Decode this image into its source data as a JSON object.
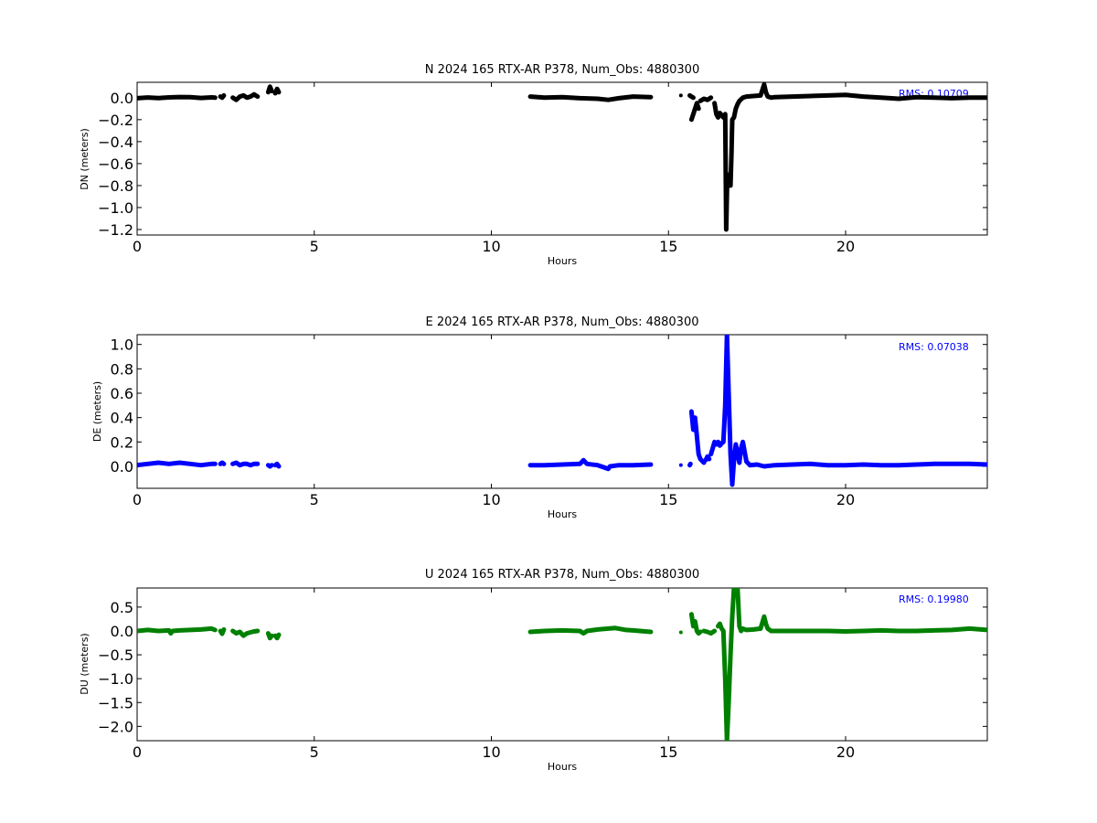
{
  "chart_data": [
    {
      "type": "scatter",
      "title": "N 2024 165 RTX-AR  P378, Num_Obs: 4880300",
      "xlabel": "Hours",
      "ylabel": "DN (meters)",
      "xlim": [
        0,
        24
      ],
      "ylim": [
        -1.25,
        0.14
      ],
      "xticks": [
        0,
        5,
        10,
        15,
        20
      ],
      "xtick_labels": [
        "0",
        "5",
        "10",
        "15",
        "20"
      ],
      "yticks": [
        0.0,
        -0.2,
        -0.4,
        -0.6,
        -0.8,
        -1.0,
        -1.2
      ],
      "ytick_labels": [
        "0.0",
        "−0.2",
        "−0.4",
        "−0.6",
        "−0.8",
        "−1.0",
        "−1.2"
      ],
      "annotation": "RMS:  0.10709",
      "color": "#000000",
      "series": [
        {
          "x": [
            0.0,
            0.3,
            0.6,
            0.9,
            1.2,
            1.5,
            1.8,
            2.1,
            2.2
          ],
          "y": [
            -0.005,
            0.002,
            -0.004,
            0.003,
            0.006,
            0.004,
            -0.002,
            0.003,
            0.0
          ]
        },
        {
          "x": [
            2.35,
            2.4,
            2.45
          ],
          "y": [
            0.01,
            0.0,
            0.02
          ]
        },
        {
          "x": [
            2.7,
            2.8,
            2.9,
            3.0,
            3.1,
            3.2,
            3.3,
            3.4
          ],
          "y": [
            0.0,
            -0.02,
            0.01,
            0.02,
            0.0,
            0.01,
            0.03,
            0.01
          ]
        },
        {
          "x": [
            3.7,
            3.75,
            3.8
          ],
          "y": [
            0.05,
            0.1,
            0.06
          ]
        },
        {
          "x": [
            3.9,
            3.95,
            4.0
          ],
          "y": [
            0.04,
            0.08,
            0.05
          ]
        },
        {
          "x": [
            11.1,
            11.5,
            12.0,
            12.5,
            13.0,
            13.3,
            13.6,
            14.0,
            14.5
          ],
          "y": [
            0.01,
            0.0,
            0.005,
            -0.005,
            -0.01,
            -0.02,
            -0.005,
            0.01,
            0.005
          ]
        },
        {
          "x": [
            15.35
          ],
          "y": [
            0.02
          ]
        },
        {
          "x": [
            15.65,
            15.7,
            15.8,
            15.85
          ],
          "y": [
            -0.2,
            -0.15,
            -0.05,
            -0.1
          ]
        },
        {
          "x": [
            15.6,
            15.65,
            15.7
          ],
          "y": [
            0.02,
            0.01,
            0.0
          ]
        },
        {
          "x": [
            15.9,
            16.0,
            16.1,
            16.2
          ],
          "y": [
            -0.03,
            -0.01,
            -0.02,
            0.0
          ]
        },
        {
          "x": [
            16.3,
            16.35,
            16.4,
            16.45,
            16.5,
            16.55,
            16.6,
            16.63,
            16.66,
            16.7,
            16.72,
            16.75,
            16.78,
            16.8,
            16.85,
            16.9,
            16.95,
            17.0,
            17.1,
            17.2,
            17.4,
            17.6,
            17.7,
            17.75,
            17.8,
            17.9,
            18.0,
            18.5,
            19.0,
            19.5,
            20.0,
            20.5,
            21.0,
            21.5,
            22.0,
            22.5,
            23.0,
            23.5,
            24.0
          ],
          "y": [
            -0.05,
            -0.15,
            -0.18,
            -0.14,
            -0.16,
            -0.18,
            -0.15,
            -1.2,
            -0.7,
            -0.8,
            -0.7,
            -0.8,
            -0.5,
            -0.2,
            -0.18,
            -0.1,
            -0.06,
            -0.03,
            0.0,
            0.01,
            0.015,
            0.02,
            0.12,
            0.05,
            0.01,
            0.0,
            0.005,
            0.01,
            0.015,
            0.02,
            0.025,
            0.01,
            0.0,
            -0.01,
            0.005,
            0.0,
            -0.005,
            0.0,
            0.0
          ]
        }
      ]
    },
    {
      "type": "scatter",
      "title": "E 2024 165 RTX-AR  P378, Num_Obs: 4880300",
      "xlabel": "Hours",
      "ylabel": "DE (meters)",
      "xlim": [
        0,
        24
      ],
      "ylim": [
        -0.18,
        1.08
      ],
      "xticks": [
        0,
        5,
        10,
        15,
        20
      ],
      "xtick_labels": [
        "0",
        "5",
        "10",
        "15",
        "20"
      ],
      "yticks": [
        0.0,
        0.2,
        0.4,
        0.6,
        0.8,
        1.0
      ],
      "ytick_labels": [
        "0.0",
        "0.2",
        "0.4",
        "0.6",
        "0.8",
        "1.0"
      ],
      "annotation": "RMS:  0.07038",
      "color": "#0000ff",
      "series": [
        {
          "x": [
            0.0,
            0.3,
            0.6,
            0.9,
            1.2,
            1.5,
            1.8,
            2.1,
            2.2
          ],
          "y": [
            0.01,
            0.02,
            0.03,
            0.02,
            0.03,
            0.02,
            0.01,
            0.02,
            0.02
          ]
        },
        {
          "x": [
            2.35,
            2.4,
            2.45
          ],
          "y": [
            0.02,
            0.03,
            0.02
          ]
        },
        {
          "x": [
            2.7,
            2.8,
            2.9,
            3.0,
            3.1,
            3.2,
            3.3,
            3.4
          ],
          "y": [
            0.02,
            0.03,
            0.01,
            0.02,
            0.02,
            0.01,
            0.02,
            0.02
          ]
        },
        {
          "x": [
            3.7,
            3.75,
            3.8
          ],
          "y": [
            0.01,
            0.0,
            0.01
          ]
        },
        {
          "x": [
            3.9,
            3.95,
            4.0
          ],
          "y": [
            0.01,
            0.02,
            0.0
          ]
        },
        {
          "x": [
            11.1,
            11.5,
            12.0,
            12.5,
            12.6,
            12.7,
            13.0,
            13.3,
            13.35,
            13.6,
            14.0,
            14.5
          ],
          "y": [
            0.01,
            0.01,
            0.015,
            0.02,
            0.05,
            0.02,
            0.01,
            -0.02,
            0.0,
            0.01,
            0.01,
            0.015
          ]
        },
        {
          "x": [
            15.35
          ],
          "y": [
            0.01
          ]
        },
        {
          "x": [
            15.6,
            15.62
          ],
          "y": [
            0.01,
            0.02
          ]
        },
        {
          "x": [
            15.65,
            15.7,
            15.75,
            15.8,
            15.85,
            15.9,
            16.0
          ],
          "y": [
            0.45,
            0.3,
            0.4,
            0.25,
            0.1,
            0.06,
            0.03
          ]
        },
        {
          "x": [
            16.05,
            16.1,
            16.15
          ],
          "y": [
            0.05,
            0.08,
            0.06
          ]
        },
        {
          "x": [
            16.2,
            16.25,
            16.3,
            16.35,
            16.4,
            16.45,
            16.5,
            16.55,
            16.6,
            16.65,
            16.7,
            16.75,
            16.8,
            16.85,
            16.9,
            16.95,
            17.0,
            17.05,
            17.1,
            17.2,
            17.3,
            17.5,
            17.7,
            18.0,
            18.5,
            19.0,
            19.5,
            20.0,
            20.5,
            21.0,
            21.5,
            22.0,
            22.5,
            23.0,
            23.5,
            24.0
          ],
          "y": [
            0.1,
            0.15,
            0.2,
            0.18,
            0.2,
            0.17,
            0.19,
            0.2,
            0.5,
            1.08,
            0.6,
            0.1,
            -0.15,
            0.05,
            0.18,
            0.1,
            0.03,
            0.15,
            0.2,
            0.04,
            0.01,
            0.015,
            0.0,
            0.01,
            0.015,
            0.02,
            0.01,
            0.01,
            0.015,
            0.01,
            0.01,
            0.015,
            0.02,
            0.02,
            0.02,
            0.015
          ]
        }
      ]
    },
    {
      "type": "scatter",
      "title": "U 2024 165 RTX-AR  P378, Num_Obs: 4880300",
      "xlabel": "Hours",
      "ylabel": "DU (meters)",
      "xlim": [
        0,
        24
      ],
      "ylim": [
        -2.3,
        0.9
      ],
      "xticks": [
        0,
        5,
        10,
        15,
        20
      ],
      "xtick_labels": [
        "0",
        "5",
        "10",
        "15",
        "20"
      ],
      "yticks": [
        0.5,
        0.0,
        -0.5,
        -1.0,
        -1.5,
        -2.0
      ],
      "ytick_labels": [
        "0.5",
        "0.0",
        "−0.5",
        "−1.0",
        "−1.5",
        "−2.0"
      ],
      "annotation": "RMS:  0.19980",
      "color": "#008000",
      "series": [
        {
          "x": [
            0.0,
            0.3,
            0.6,
            0.9,
            0.95,
            1.0,
            1.2,
            1.5,
            1.8,
            2.1,
            2.2
          ],
          "y": [
            0.0,
            0.02,
            0.0,
            0.01,
            -0.05,
            0.0,
            0.01,
            0.02,
            0.03,
            0.05,
            0.02
          ]
        },
        {
          "x": [
            2.35,
            2.4,
            2.45
          ],
          "y": [
            0.0,
            -0.06,
            0.03
          ]
        },
        {
          "x": [
            2.7,
            2.8,
            2.9,
            3.0,
            3.1,
            3.2,
            3.3,
            3.4
          ],
          "y": [
            0.0,
            -0.05,
            -0.02,
            -0.1,
            -0.05,
            -0.03,
            -0.01,
            0.0
          ]
        },
        {
          "x": [
            3.7,
            3.75,
            3.8
          ],
          "y": [
            -0.05,
            -0.15,
            -0.1
          ]
        },
        {
          "x": [
            3.9,
            3.95,
            4.0
          ],
          "y": [
            -0.1,
            -0.15,
            -0.08
          ]
        },
        {
          "x": [
            11.1,
            11.5,
            12.0,
            12.5,
            12.6,
            12.7,
            13.0,
            13.3,
            13.5,
            13.8,
            14.0,
            14.5
          ],
          "y": [
            -0.02,
            0.0,
            0.01,
            0.0,
            -0.05,
            0.0,
            0.03,
            0.05,
            0.06,
            0.02,
            0.01,
            -0.02
          ]
        },
        {
          "x": [
            15.35
          ],
          "y": [
            -0.03
          ]
        },
        {
          "x": [
            15.65,
            15.7,
            15.75,
            15.8,
            15.85,
            15.9
          ],
          "y": [
            0.35,
            0.1,
            0.2,
            0.0,
            -0.05,
            -0.02
          ]
        },
        {
          "x": [
            16.0,
            16.1,
            16.2,
            16.3
          ],
          "y": [
            0.0,
            -0.02,
            -0.05,
            0.0
          ]
        },
        {
          "x": [
            16.4,
            16.45,
            16.5,
            16.55,
            16.6,
            16.65,
            16.7,
            16.75,
            16.8,
            16.85,
            16.9,
            16.95,
            17.0,
            17.05,
            17.1,
            17.2,
            17.4,
            17.6,
            17.7,
            17.75,
            17.8,
            17.9,
            18.0,
            18.5,
            19.0,
            19.5,
            20.0,
            20.5,
            21.0,
            21.5,
            22.0,
            22.5,
            23.0,
            23.5,
            24.0
          ],
          "y": [
            0.1,
            0.15,
            0.05,
            0.0,
            -1.0,
            -2.3,
            -1.5,
            -0.5,
            0.3,
            0.9,
            0.85,
            0.9,
            0.1,
            0.0,
            0.05,
            0.02,
            0.03,
            0.05,
            0.3,
            0.15,
            0.05,
            0.0,
            0.0,
            0.0,
            0.0,
            0.0,
            -0.01,
            0.0,
            0.01,
            0.0,
            0.0,
            0.01,
            0.02,
            0.05,
            0.02
          ]
        }
      ]
    }
  ]
}
